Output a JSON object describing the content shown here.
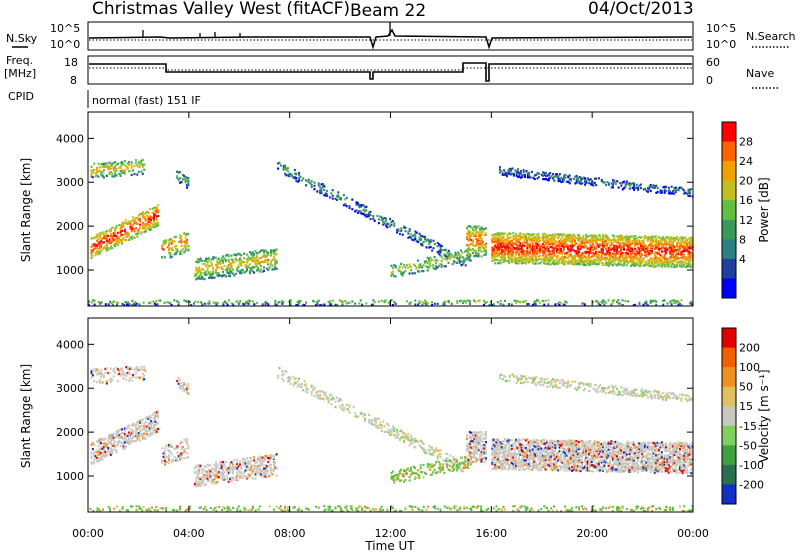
{
  "header": {
    "station": "Christmas Valley West (fitACF)",
    "beam": "Beam 22",
    "date": "04/Oct/2013"
  },
  "panels": {
    "nsky": {
      "left_label": "N.Sky",
      "left_ticks": [
        "10^5",
        "10^0"
      ],
      "right_label": "N.Search",
      "right_ticks": [
        "10^5",
        "10^0"
      ]
    },
    "freq": {
      "left_label_1": "Freq.",
      "left_label_2": "[MHz]",
      "left_ticks": [
        "18",
        "8"
      ],
      "right_label": "Nave",
      "right_ticks": [
        "60",
        "0"
      ]
    },
    "cpid": {
      "label": "CPID",
      "value": "normal (fast) 151 IF"
    }
  },
  "chart_data": [
    {
      "type": "heatmap",
      "name": "power",
      "ylabel": "Slant Range [km]",
      "yticks": [
        "4000",
        "3000",
        "2000",
        "1000"
      ],
      "yvals": [
        4000,
        3000,
        2000,
        1000
      ],
      "ylim": [
        180,
        4600
      ],
      "colorbar": {
        "label": "Power [dB]",
        "ticks": [
          "28",
          "24",
          "20",
          "16",
          "12",
          "8",
          "4"
        ],
        "colors": [
          "#0000ff",
          "#1f3fa0",
          "#2a8080",
          "#3a9a5a",
          "#60c040",
          "#c0c020",
          "#f0a000",
          "#ff6000",
          "#ff0000"
        ]
      }
    },
    {
      "type": "heatmap",
      "name": "velocity",
      "ylabel": "Slant Range [km]",
      "yticks": [
        "4000",
        "3000",
        "2000",
        "1000"
      ],
      "yvals": [
        4000,
        3000,
        2000,
        1000
      ],
      "ylim": [
        180,
        4600
      ],
      "colorbar": {
        "label": "Velocity [m s⁻¹]",
        "ticks": [
          "200",
          "100",
          "50",
          "15",
          "-15",
          "-50",
          "-100",
          "-200"
        ],
        "colors": [
          "#1030c0",
          "#2a7050",
          "#40a040",
          "#80d060",
          "#c8c8c0",
          "#e0c060",
          "#f09020",
          "#f06000",
          "#e00000"
        ]
      }
    }
  ],
  "xaxis": {
    "label": "Time UT",
    "ticks": [
      "00:00",
      "04:00",
      "08:00",
      "12:00",
      "16:00",
      "20:00",
      "00:00"
    ],
    "hours": [
      0,
      4,
      8,
      12,
      16,
      20,
      24
    ]
  }
}
